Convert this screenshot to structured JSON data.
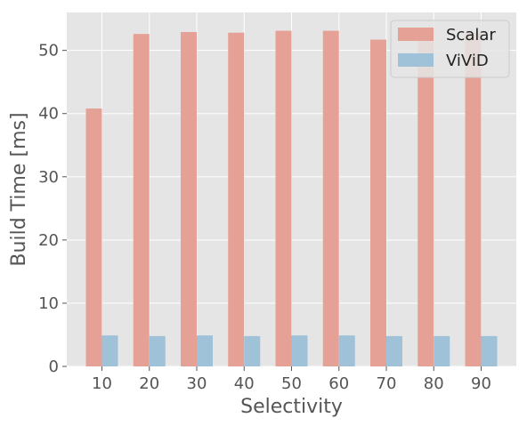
{
  "chart_data": {
    "type": "bar",
    "xlabel": "Selectivity",
    "ylabel": "Build Time [ms]",
    "categories": [
      "10",
      "20",
      "30",
      "40",
      "50",
      "60",
      "70",
      "80",
      "90"
    ],
    "ylim": [
      0,
      56
    ],
    "yticks": [
      0,
      10,
      20,
      30,
      40,
      50
    ],
    "grid": true,
    "legend_position": "top-right",
    "series": [
      {
        "name": "Scalar",
        "color": "#E5A196",
        "values": [
          40.8,
          52.6,
          52.9,
          52.8,
          53.1,
          53.1,
          51.7,
          52.2,
          52.8
        ]
      },
      {
        "name": "ViViD",
        "color": "#9FC2D8",
        "values": [
          4.9,
          4.8,
          4.9,
          4.8,
          4.9,
          4.9,
          4.8,
          4.8,
          4.8
        ]
      }
    ]
  }
}
